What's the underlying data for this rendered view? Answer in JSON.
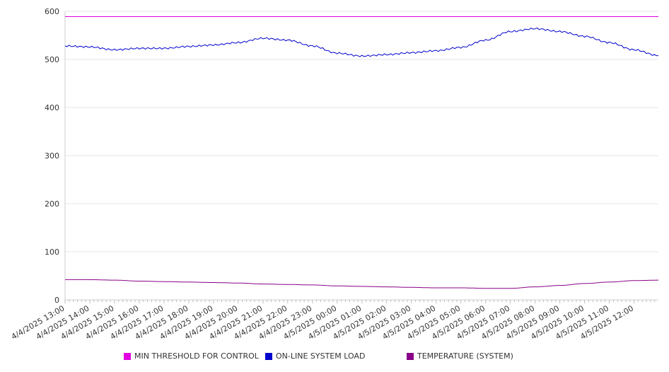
{
  "chart_data": {
    "type": "line",
    "title": "",
    "xlabel": "",
    "ylabel": "",
    "ylim": [
      0,
      600
    ],
    "yticks": [
      0,
      100,
      200,
      300,
      400,
      500,
      600
    ],
    "grid": true,
    "legend_position": "bottom",
    "xtick_labels": [
      "4/4/2025 13:00",
      "4/4/2025 14:00",
      "4/4/2025 15:00",
      "4/4/2025 16:00",
      "4/4/2025 17:00",
      "4/4/2025 18:00",
      "4/4/2025 19:00",
      "4/4/2025 20:00",
      "4/4/2025 21:00",
      "4/4/2025 22:00",
      "4/4/2025 23:00",
      "4/5/2025 00:00",
      "4/5/2025 01:00",
      "4/5/2025 02:00",
      "4/5/2025 03:00",
      "4/5/2025 04:00",
      "4/5/2025 05:00",
      "4/5/2025 06:00",
      "4/5/2025 07:00",
      "4/5/2025 08:00",
      "4/5/2025 09:00",
      "4/5/2025 10:00",
      "4/5/2025 11:00",
      "4/5/2025 12:00"
    ],
    "series": [
      {
        "name": "MIN THRESHOLD FOR CONTROL",
        "color": "#e000e0",
        "x": [
          "4/4/2025 13:00",
          "4/5/2025 12:59"
        ],
        "values": [
          589,
          589
        ]
      },
      {
        "name": "ON-LINE SYSTEM LOAD",
        "color": "#0000cc",
        "x": [
          "4/4/2025 13:00",
          "4/4/2025 14:00",
          "4/4/2025 15:00",
          "4/4/2025 16:00",
          "4/4/2025 17:00",
          "4/4/2025 18:00",
          "4/4/2025 19:00",
          "4/4/2025 20:00",
          "4/4/2025 21:00",
          "4/4/2025 22:00",
          "4/4/2025 23:00",
          "4/5/2025 00:00",
          "4/5/2025 01:00",
          "4/5/2025 02:00",
          "4/5/2025 03:00",
          "4/5/2025 04:00",
          "4/5/2025 05:00",
          "4/5/2025 06:00",
          "4/5/2025 07:00",
          "4/5/2025 08:00",
          "4/5/2025 09:00",
          "4/5/2025 10:00",
          "4/5/2025 11:00",
          "4/5/2025 12:00",
          "4/5/2025 12:59"
        ],
        "values": [
          528,
          526,
          520,
          523,
          523,
          527,
          530,
          535,
          544,
          540,
          528,
          513,
          507,
          510,
          514,
          518,
          525,
          540,
          558,
          564,
          558,
          548,
          535,
          520,
          508
        ]
      },
      {
        "name": "TEMPERATURE (SYSTEM)",
        "color": "#880088",
        "x": [
          "4/4/2025 13:00",
          "4/4/2025 14:00",
          "4/4/2025 15:00",
          "4/4/2025 16:00",
          "4/4/2025 17:00",
          "4/4/2025 18:00",
          "4/4/2025 19:00",
          "4/4/2025 20:00",
          "4/4/2025 21:00",
          "4/4/2025 22:00",
          "4/4/2025 23:00",
          "4/5/2025 00:00",
          "4/5/2025 01:00",
          "4/5/2025 02:00",
          "4/5/2025 03:00",
          "4/5/2025 04:00",
          "4/5/2025 05:00",
          "4/5/2025 06:00",
          "4/5/2025 07:00",
          "4/5/2025 08:00",
          "4/5/2025 09:00",
          "4/5/2025 10:00",
          "4/5/2025 11:00",
          "4/5/2025 12:00",
          "4/5/2025 12:59"
        ],
        "values": [
          42,
          42,
          41,
          39,
          38,
          37,
          36,
          35,
          33,
          32,
          31,
          29,
          28,
          27,
          26,
          25,
          25,
          24,
          24,
          27,
          30,
          34,
          37,
          40,
          41
        ]
      }
    ]
  }
}
